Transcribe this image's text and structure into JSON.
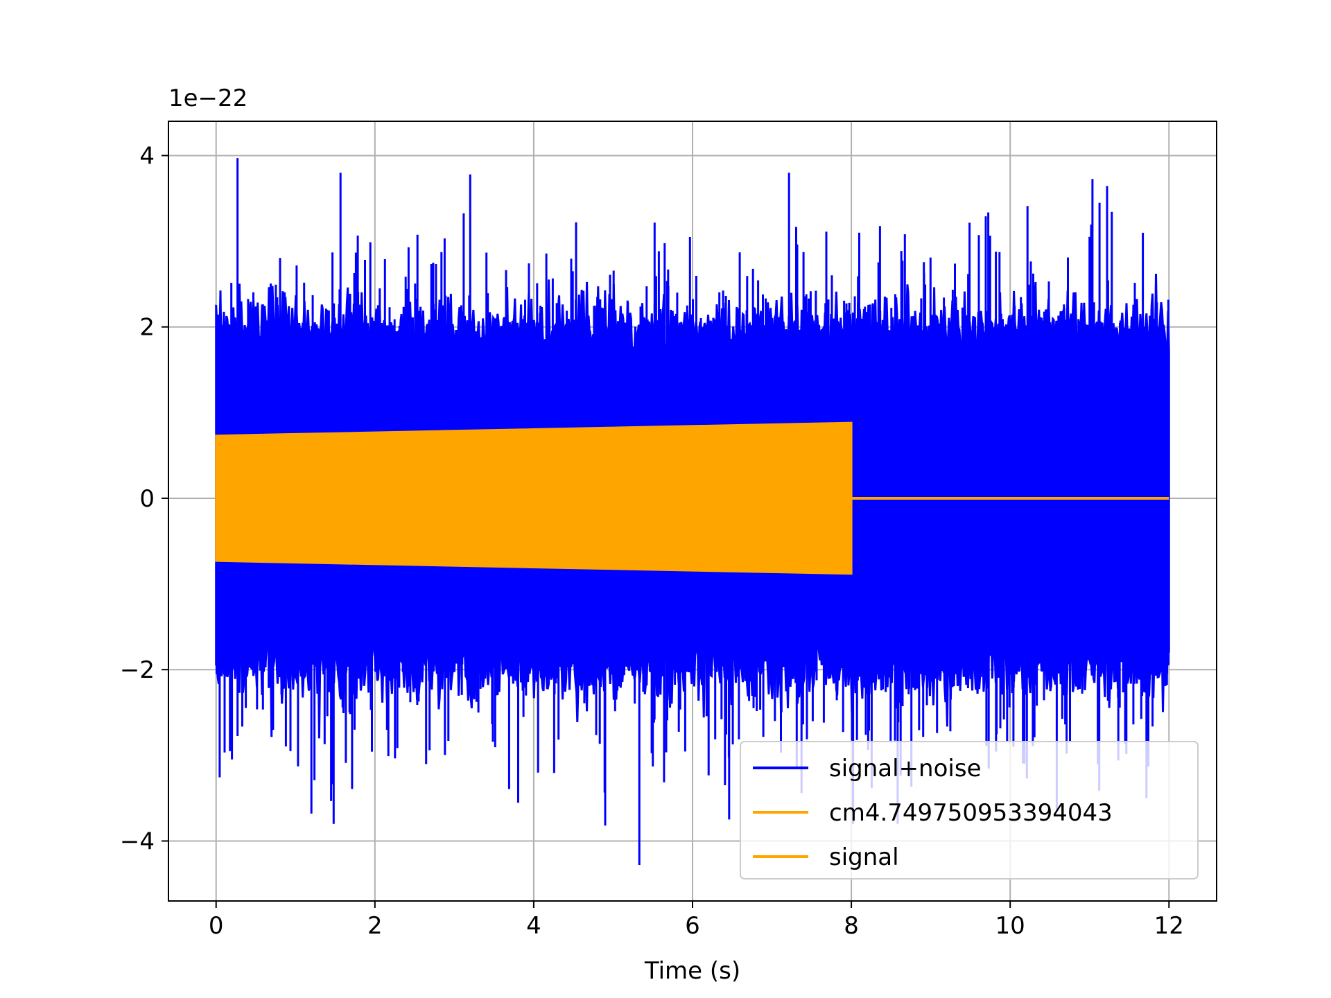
{
  "chart_data": {
    "type": "line",
    "title": "",
    "xlabel": "Time (s)",
    "ylabel": "",
    "offset_text": "1e−22",
    "xlim": [
      -0.6,
      12.6
    ],
    "ylim": [
      -4.7,
      4.4
    ],
    "x_ticks": [
      0,
      2,
      4,
      6,
      8,
      10,
      12
    ],
    "x_tick_labels": [
      "0",
      "2",
      "4",
      "6",
      "8",
      "10",
      "12"
    ],
    "y_ticks": [
      -4,
      -2,
      0,
      2,
      4
    ],
    "y_tick_labels": [
      "−4",
      "−2",
      "0",
      "2",
      "4"
    ],
    "grid": true,
    "legend_position": "lower-right",
    "series": [
      {
        "name": "signal+noise",
        "color": "#0000ff",
        "x_range": [
          0,
          12
        ],
        "envelope_upper": 2.0,
        "envelope_lower": -2.0,
        "peak_max": 3.97,
        "peak_min": -4.28
      },
      {
        "name": "cm4.749750953394043",
        "color": "#ffa500",
        "x_range": [
          0,
          8
        ],
        "amplitude_start": 0.73,
        "amplitude_end": 0.88
      },
      {
        "name": "signal",
        "color": "#ffa500",
        "x_range": [
          0,
          12
        ],
        "amplitude_start": 0.73,
        "amplitude_end": 0.88,
        "cutoff": 8
      }
    ]
  }
}
